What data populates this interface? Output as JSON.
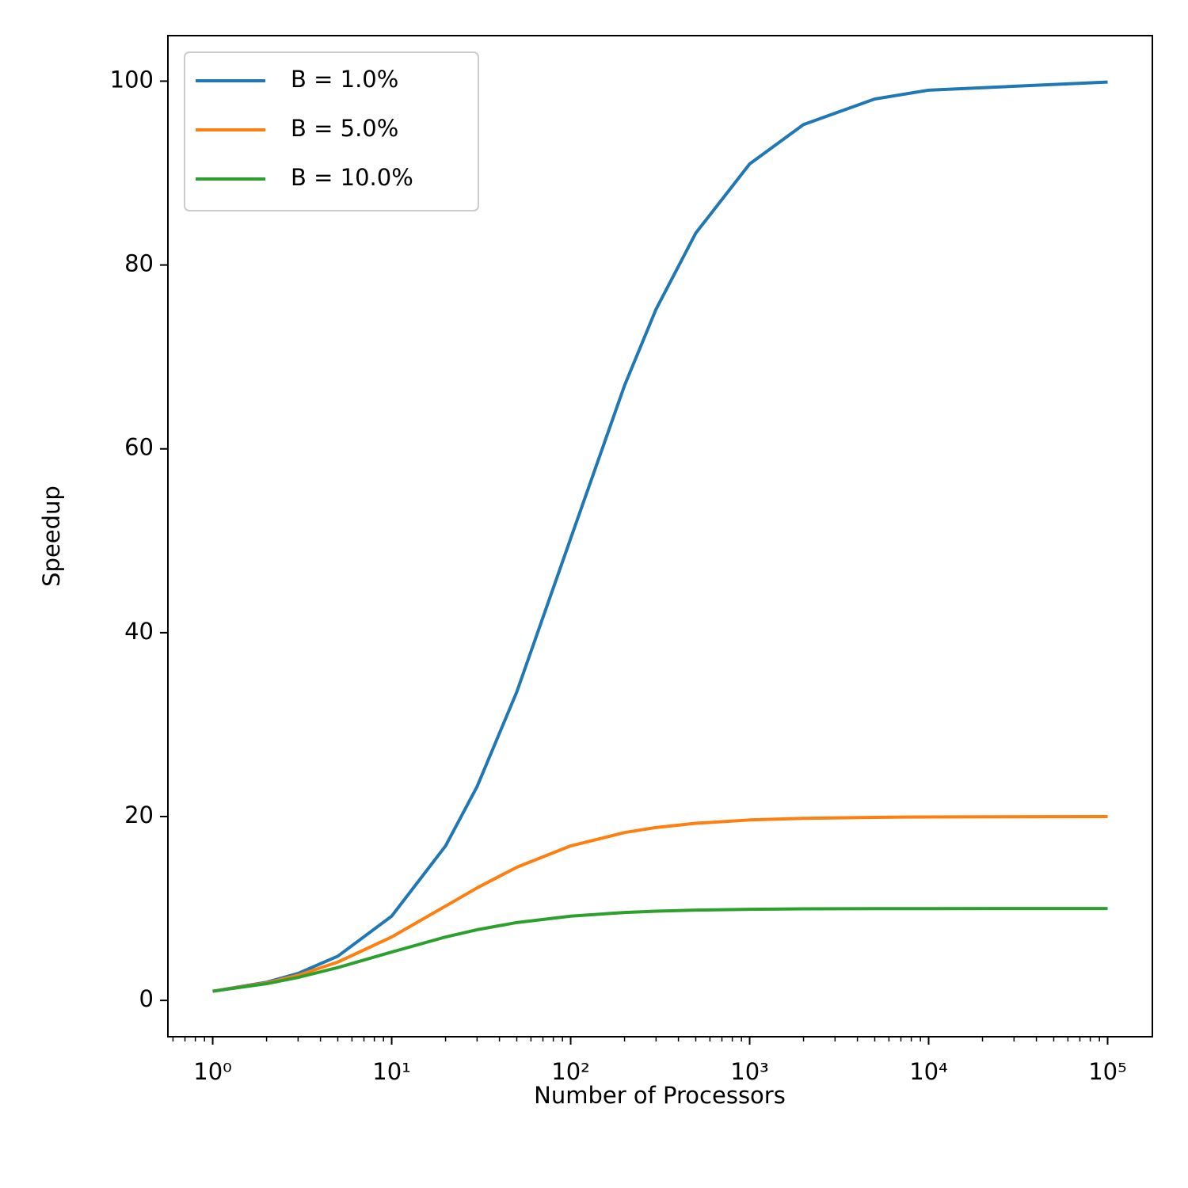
{
  "chart_data": {
    "type": "line",
    "x_label": "Number of Processors",
    "y_label": "Speedup",
    "x": [
      1,
      2,
      3,
      5,
      10,
      20,
      30,
      50,
      100,
      200,
      300,
      500,
      1000,
      2000,
      5000,
      10000,
      100000
    ],
    "series": [
      {
        "name": "B = 1.0%",
        "color": "#1f77b4",
        "values": [
          1,
          1.98,
          2.94,
          4.81,
          9.17,
          16.81,
          23.26,
          33.56,
          50.25,
          66.89,
          75.19,
          83.47,
          90.99,
          95.28,
          98.06,
          99.02,
          99.9
        ]
      },
      {
        "name": "B = 5.0%",
        "color": "#ff7f0e",
        "values": [
          1,
          1.9,
          2.73,
          4.17,
          6.9,
          10.26,
          12.24,
          14.49,
          16.81,
          18.26,
          18.81,
          19.27,
          19.63,
          19.81,
          19.92,
          19.96,
          20
        ]
      },
      {
        "name": "B = 10.0%",
        "color": "#2ca02c",
        "values": [
          1,
          1.82,
          2.5,
          3.57,
          5.26,
          6.9,
          7.69,
          8.47,
          9.17,
          9.57,
          9.71,
          9.82,
          9.91,
          9.96,
          9.98,
          9.99,
          10
        ]
      }
    ],
    "x_log": true,
    "xlim": [
      0.562,
      177828
    ],
    "ylim": [
      -3.95,
      104.95
    ],
    "xticks": [
      {
        "value": 1,
        "label": "10⁰"
      },
      {
        "value": 10,
        "label": "10¹"
      },
      {
        "value": 100,
        "label": "10²"
      },
      {
        "value": 1000,
        "label": "10³"
      },
      {
        "value": 10000,
        "label": "10⁴"
      },
      {
        "value": 100000,
        "label": "10⁵"
      }
    ],
    "x_minor_ticks": [
      0.6,
      0.7,
      0.8,
      0.9,
      2,
      3,
      4,
      5,
      6,
      7,
      8,
      9,
      20,
      30,
      40,
      50,
      60,
      70,
      80,
      90,
      200,
      300,
      400,
      500,
      600,
      700,
      800,
      900,
      2000,
      3000,
      4000,
      5000,
      6000,
      7000,
      8000,
      9000,
      20000,
      30000,
      40000,
      50000,
      60000,
      70000,
      80000,
      90000
    ],
    "yticks": [
      0,
      20,
      40,
      60,
      80,
      100
    ],
    "grid": false,
    "legend": "upper left"
  }
}
